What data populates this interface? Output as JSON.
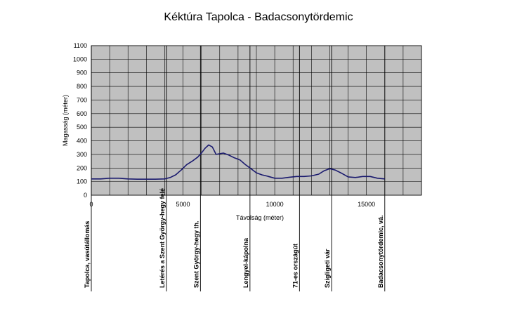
{
  "chart_data": {
    "type": "line",
    "title": "Kéktúra Tapolca - Badacsonytördemic",
    "xlabel": "Távolság (méter)",
    "ylabel": "Magasság (méter)",
    "xlim": [
      0,
      18000
    ],
    "ylim": [
      0,
      1100
    ],
    "x_ticks": [
      0,
      5000,
      10000,
      15000
    ],
    "y_ticks": [
      0,
      100,
      200,
      300,
      400,
      500,
      600,
      700,
      800,
      900,
      1000,
      1100
    ],
    "grid": true,
    "plot_background": "#c0c0c0",
    "series": [
      {
        "color": "#1a1a6e",
        "x": [
          0,
          500,
          1000,
          1500,
          2000,
          2500,
          3000,
          3500,
          4000,
          4300,
          4600,
          4900,
          5200,
          5500,
          5800,
          6000,
          6200,
          6400,
          6600,
          6800,
          7000,
          7200,
          7500,
          7800,
          8100,
          8400,
          8700,
          9000,
          9300,
          9600,
          10000,
          10400,
          10800,
          11200,
          11600,
          12000,
          12400,
          12700,
          13000,
          13300,
          13600,
          14000,
          14400,
          14800,
          15200,
          15600,
          16000
        ],
        "y": [
          120,
          120,
          125,
          125,
          120,
          118,
          118,
          118,
          120,
          130,
          150,
          185,
          225,
          250,
          280,
          310,
          345,
          370,
          355,
          300,
          305,
          310,
          295,
          275,
          260,
          225,
          195,
          165,
          150,
          140,
          125,
          125,
          132,
          138,
          138,
          142,
          155,
          180,
          195,
          185,
          165,
          135,
          130,
          138,
          138,
          125,
          120
        ]
      }
    ],
    "waypoints": [
      {
        "x": 0,
        "label": "Tapolca, vasútállomás"
      },
      {
        "x": 4100,
        "label": "Letérés a Szent György-hegy felé"
      },
      {
        "x": 5950,
        "label": "Szent György-hegy th."
      },
      {
        "x": 8650,
        "label": "Lengyel-kápolna"
      },
      {
        "x": 11350,
        "label": "71-es országút"
      },
      {
        "x": 13100,
        "label": "Szigligeti vár"
      },
      {
        "x": 16000,
        "label": "Badacsonytördemic, vá."
      }
    ]
  }
}
